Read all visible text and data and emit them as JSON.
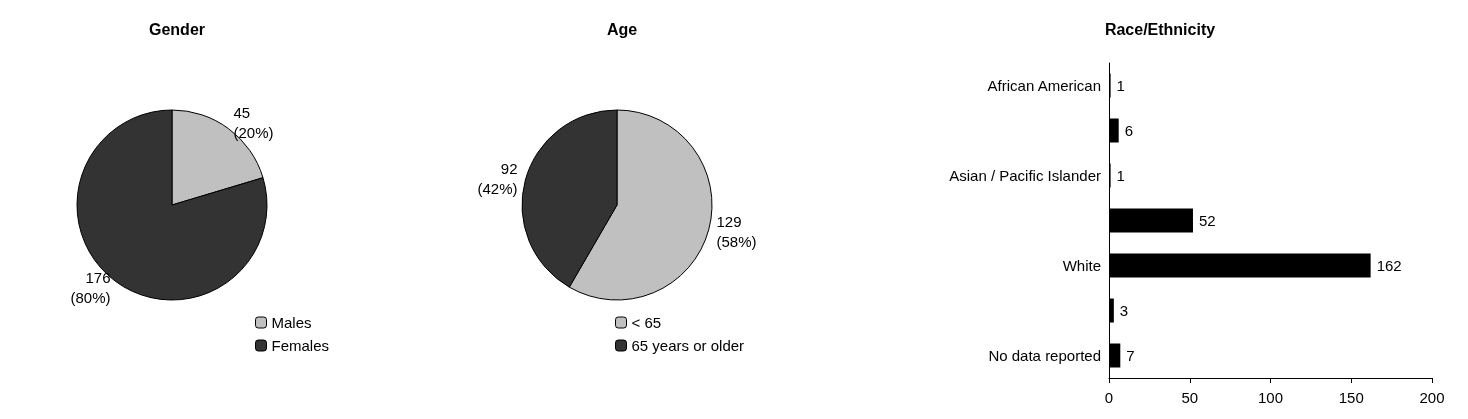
{
  "chart_data": [
    {
      "type": "pie",
      "title": "Gender",
      "categories": [
        "Males",
        "Females"
      ],
      "values": [
        45,
        176
      ],
      "colors": [
        "#c0c0c0",
        "#333333"
      ],
      "value_labels": [
        "45\n(20%)",
        "176\n(80%)"
      ],
      "legend": "bottom right"
    },
    {
      "type": "pie",
      "title": "Age",
      "categories": [
        "< 65",
        "65 years or older"
      ],
      "values": [
        129,
        92
      ],
      "colors": [
        "#c0c0c0",
        "#333333"
      ],
      "value_labels": [
        "129\n(58%)",
        "92\n(42%)"
      ],
      "legend": "bottom right"
    },
    {
      "type": "bar",
      "orientation": "horizontal",
      "title": "Race/Ethnicity",
      "categories": [
        "African American",
        null,
        "Asian / Pacific Islander",
        null,
        "White",
        null,
        "No data reported"
      ],
      "values": [
        1,
        6,
        1,
        52,
        162,
        3,
        7
      ],
      "color": "#000000",
      "xlim": [
        0,
        200
      ],
      "xticks": [
        0,
        50,
        100,
        150,
        200
      ],
      "data_labels": true
    }
  ]
}
